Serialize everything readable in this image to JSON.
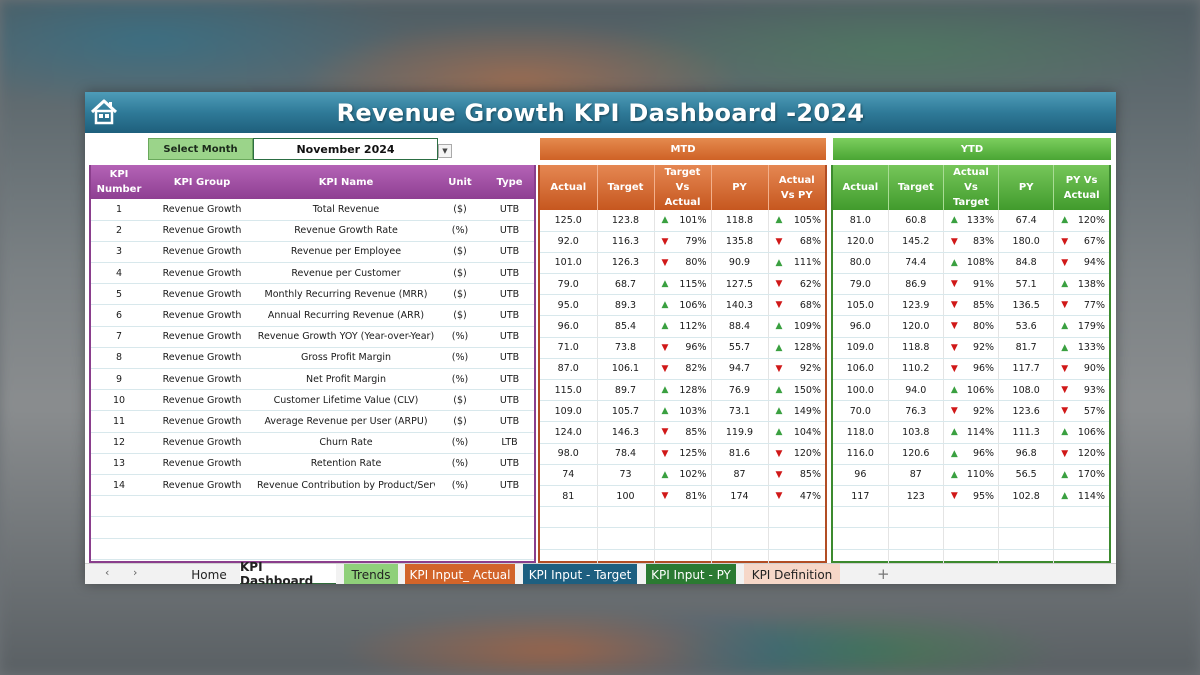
{
  "header": {
    "title": "Revenue Growth KPI Dashboard -2024"
  },
  "controls": {
    "select_month_label": "Select Month",
    "month_value": "November 2024",
    "mtd_label": "MTD",
    "ytd_label": "YTD"
  },
  "columns": {
    "kpi_number": "KPI Number",
    "kpi_group": "KPI Group",
    "kpi_name": "KPI Name",
    "unit": "Unit",
    "type": "Type",
    "mtd": [
      "Actual",
      "Target",
      "Target Vs Actual",
      "PY",
      "Actual Vs PY"
    ],
    "ytd": [
      "Actual",
      "Target",
      "Actual Vs Target",
      "PY",
      "PY Vs Actual"
    ]
  },
  "colors": {
    "up_arrow": "#3aa040",
    "down_arrow": "#d01818",
    "mtd_accent": "#cf6226",
    "ytd_accent": "#4aa534",
    "kpi_accent": "#8e3f92"
  },
  "rows": [
    {
      "num": "1",
      "group": "Revenue Growth",
      "name": "Total Revenue",
      "unit": "($)",
      "type": "UTB",
      "mtd": {
        "actual": "125.0",
        "target": "123.8",
        "tva": "101%",
        "tva_dir": "up",
        "py": "118.8",
        "avp": "105%",
        "avp_dir": "up"
      },
      "ytd": {
        "actual": "81.0",
        "target": "60.8",
        "avt": "133%",
        "avt_dir": "up",
        "py": "67.4",
        "pva": "120%",
        "pva_dir": "up"
      }
    },
    {
      "num": "2",
      "group": "Revenue Growth",
      "name": "Revenue Growth Rate",
      "unit": "(%)",
      "type": "UTB",
      "mtd": {
        "actual": "92.0",
        "target": "116.3",
        "tva": "79%",
        "tva_dir": "down",
        "py": "135.8",
        "avp": "68%",
        "avp_dir": "down"
      },
      "ytd": {
        "actual": "120.0",
        "target": "145.2",
        "avt": "83%",
        "avt_dir": "down",
        "py": "180.0",
        "pva": "67%",
        "pva_dir": "down"
      }
    },
    {
      "num": "3",
      "group": "Revenue Growth",
      "name": "Revenue per Employee",
      "unit": "($)",
      "type": "UTB",
      "mtd": {
        "actual": "101.0",
        "target": "126.3",
        "tva": "80%",
        "tva_dir": "down",
        "py": "90.9",
        "avp": "111%",
        "avp_dir": "up"
      },
      "ytd": {
        "actual": "80.0",
        "target": "74.4",
        "avt": "108%",
        "avt_dir": "up",
        "py": "84.8",
        "pva": "94%",
        "pva_dir": "down"
      }
    },
    {
      "num": "4",
      "group": "Revenue Growth",
      "name": "Revenue per Customer",
      "unit": "($)",
      "type": "UTB",
      "mtd": {
        "actual": "79.0",
        "target": "68.7",
        "tva": "115%",
        "tva_dir": "up",
        "py": "127.5",
        "avp": "62%",
        "avp_dir": "down"
      },
      "ytd": {
        "actual": "79.0",
        "target": "86.9",
        "avt": "91%",
        "avt_dir": "down",
        "py": "57.1",
        "pva": "138%",
        "pva_dir": "up"
      }
    },
    {
      "num": "5",
      "group": "Revenue Growth",
      "name": "Monthly Recurring Revenue (MRR)",
      "unit": "($)",
      "type": "UTB",
      "mtd": {
        "actual": "95.0",
        "target": "89.3",
        "tva": "106%",
        "tva_dir": "up",
        "py": "140.3",
        "avp": "68%",
        "avp_dir": "down"
      },
      "ytd": {
        "actual": "105.0",
        "target": "123.9",
        "avt": "85%",
        "avt_dir": "down",
        "py": "136.5",
        "pva": "77%",
        "pva_dir": "down"
      }
    },
    {
      "num": "6",
      "group": "Revenue Growth",
      "name": "Annual Recurring Revenue (ARR)",
      "unit": "($)",
      "type": "UTB",
      "mtd": {
        "actual": "96.0",
        "target": "85.4",
        "tva": "112%",
        "tva_dir": "up",
        "py": "88.4",
        "avp": "109%",
        "avp_dir": "up"
      },
      "ytd": {
        "actual": "96.0",
        "target": "120.0",
        "avt": "80%",
        "avt_dir": "down",
        "py": "53.6",
        "pva": "179%",
        "pva_dir": "up"
      }
    },
    {
      "num": "7",
      "group": "Revenue Growth",
      "name": "Revenue Growth YOY (Year-over-Year)",
      "unit": "(%)",
      "type": "UTB",
      "mtd": {
        "actual": "71.0",
        "target": "73.8",
        "tva": "96%",
        "tva_dir": "down",
        "py": "55.7",
        "avp": "128%",
        "avp_dir": "up"
      },
      "ytd": {
        "actual": "109.0",
        "target": "118.8",
        "avt": "92%",
        "avt_dir": "down",
        "py": "81.7",
        "pva": "133%",
        "pva_dir": "up"
      }
    },
    {
      "num": "8",
      "group": "Revenue Growth",
      "name": "Gross Profit Margin",
      "unit": "(%)",
      "type": "UTB",
      "mtd": {
        "actual": "87.0",
        "target": "106.1",
        "tva": "82%",
        "tva_dir": "down",
        "py": "94.7",
        "avp": "92%",
        "avp_dir": "down"
      },
      "ytd": {
        "actual": "106.0",
        "target": "110.2",
        "avt": "96%",
        "avt_dir": "down",
        "py": "117.7",
        "pva": "90%",
        "pva_dir": "down"
      }
    },
    {
      "num": "9",
      "group": "Revenue Growth",
      "name": "Net Profit Margin",
      "unit": "(%)",
      "type": "UTB",
      "mtd": {
        "actual": "115.0",
        "target": "89.7",
        "tva": "128%",
        "tva_dir": "up",
        "py": "76.9",
        "avp": "150%",
        "avp_dir": "up"
      },
      "ytd": {
        "actual": "100.0",
        "target": "94.0",
        "avt": "106%",
        "avt_dir": "up",
        "py": "108.0",
        "pva": "93%",
        "pva_dir": "down"
      }
    },
    {
      "num": "10",
      "group": "Revenue Growth",
      "name": "Customer Lifetime Value (CLV)",
      "unit": "($)",
      "type": "UTB",
      "mtd": {
        "actual": "109.0",
        "target": "105.7",
        "tva": "103%",
        "tva_dir": "up",
        "py": "73.1",
        "avp": "149%",
        "avp_dir": "up"
      },
      "ytd": {
        "actual": "70.0",
        "target": "76.3",
        "avt": "92%",
        "avt_dir": "down",
        "py": "123.6",
        "pva": "57%",
        "pva_dir": "down"
      }
    },
    {
      "num": "11",
      "group": "Revenue Growth",
      "name": "Average Revenue per User (ARPU)",
      "unit": "($)",
      "type": "UTB",
      "mtd": {
        "actual": "124.0",
        "target": "146.3",
        "tva": "85%",
        "tva_dir": "down",
        "py": "119.9",
        "avp": "104%",
        "avp_dir": "up"
      },
      "ytd": {
        "actual": "118.0",
        "target": "103.8",
        "avt": "114%",
        "avt_dir": "up",
        "py": "111.3",
        "pva": "106%",
        "pva_dir": "up"
      }
    },
    {
      "num": "12",
      "group": "Revenue Growth",
      "name": "Churn Rate",
      "unit": "(%)",
      "type": "LTB",
      "mtd": {
        "actual": "98.0",
        "target": "78.4",
        "tva": "125%",
        "tva_dir": "down",
        "py": "81.6",
        "avp": "120%",
        "avp_dir": "down"
      },
      "ytd": {
        "actual": "116.0",
        "target": "120.6",
        "avt": "96%",
        "avt_dir": "up",
        "py": "96.8",
        "pva": "120%",
        "pva_dir": "down"
      }
    },
    {
      "num": "13",
      "group": "Revenue Growth",
      "name": "Retention Rate",
      "unit": "(%)",
      "type": "UTB",
      "mtd": {
        "actual": "74",
        "target": "73",
        "tva": "102%",
        "tva_dir": "up",
        "py": "87",
        "avp": "85%",
        "avp_dir": "down"
      },
      "ytd": {
        "actual": "96",
        "target": "87",
        "avt": "110%",
        "avt_dir": "up",
        "py": "56.5",
        "pva": "170%",
        "pva_dir": "up"
      }
    },
    {
      "num": "14",
      "group": "Revenue Growth",
      "name": "Revenue Contribution by Product/Service",
      "unit": "(%)",
      "type": "UTB",
      "mtd": {
        "actual": "81",
        "target": "100",
        "tva": "81%",
        "tva_dir": "down",
        "py": "174",
        "avp": "47%",
        "avp_dir": "down"
      },
      "ytd": {
        "actual": "117",
        "target": "123",
        "avt": "95%",
        "avt_dir": "down",
        "py": "102.8",
        "pva": "114%",
        "pva_dir": "up"
      }
    }
  ],
  "tabs": {
    "home": "Home",
    "kpi_dashboard": "KPI Dashboard",
    "trends": "Trends",
    "input_actual": "KPI Input_ Actual",
    "input_target": "KPI Input - Target",
    "input_py": "KPI Input - PY",
    "definition": "KPI Definition"
  }
}
